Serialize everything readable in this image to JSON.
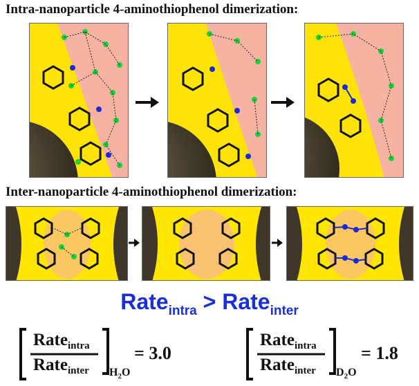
{
  "headings": {
    "intra": "Intra-nanoparticle 4-aminothiophenol dimerization:",
    "inter": "Inter-nanoparticle 4-aminothiophenol dimerization:"
  },
  "comparison": {
    "rate": "Rate",
    "intra": "intra",
    "gt": " > ",
    "inter": "inter"
  },
  "ratios": [
    {
      "numerator_rate": "Rate",
      "numerator_sub": "intra",
      "denominator_rate": "Rate",
      "denominator_sub": "inter",
      "solvent_base": "H",
      "solvent_sub": "2",
      "solvent_tail": "O",
      "equals": "=",
      "value": "3.0"
    },
    {
      "numerator_rate": "Rate",
      "numerator_sub": "intra",
      "denominator_rate": "Rate",
      "denominator_sub": "inter",
      "solvent_base": "D",
      "solvent_sub": "2",
      "solvent_tail": "O",
      "equals": "=",
      "value": "1.8"
    }
  ],
  "colors": {
    "gold": "#ffe600",
    "pink": "#f6b2a3",
    "nanoparticle": "#3e372a",
    "water_oxygen": "#1fcf3a",
    "nitrogen": "#1a2bd0",
    "carbon": "#111111",
    "hydrogen": "#cfd6dc",
    "sulfur": "#d9a000",
    "text_blue": "#1a2fd6"
  }
}
